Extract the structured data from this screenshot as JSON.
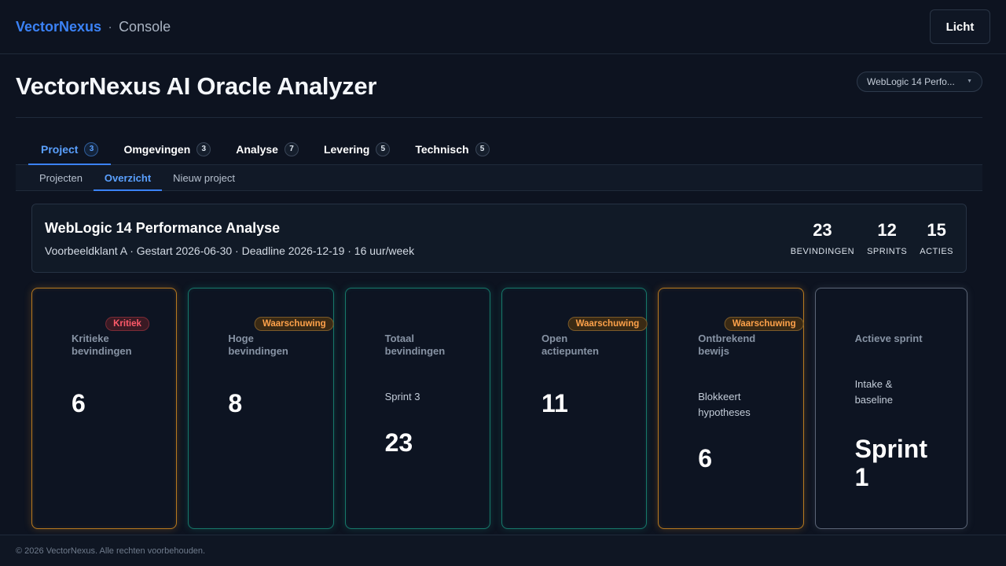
{
  "header": {
    "brand": "VectorNexus",
    "separator": "·",
    "section": "Console",
    "theme_button": "Licht"
  },
  "page": {
    "title": "VectorNexus AI Oracle Analyzer",
    "project_select": "WebLogic 14 Perfo..."
  },
  "tabs": [
    {
      "label": "Project",
      "count": "3",
      "active": true
    },
    {
      "label": "Omgevingen",
      "count": "3"
    },
    {
      "label": "Analyse",
      "count": "7"
    },
    {
      "label": "Levering",
      "count": "5"
    },
    {
      "label": "Technisch",
      "count": "5"
    }
  ],
  "subtabs": [
    {
      "label": "Projecten"
    },
    {
      "label": "Overzicht",
      "active": true
    },
    {
      "label": "Nieuw project"
    }
  ],
  "summary": {
    "title": "WebLogic 14 Performance Analyse",
    "meta": "Voorbeeldklant A · Gestart 2026-06-30 · Deadline 2026-12-19 · 16 uur/week",
    "stats": [
      {
        "value": "23",
        "label": "BEVINDINGEN"
      },
      {
        "value": "12",
        "label": "SPRINTS"
      },
      {
        "value": "15",
        "label": "ACTIES"
      }
    ]
  },
  "cards": [
    {
      "label": "Kritieke bevindingen",
      "badge": "Kritiek",
      "value": "6"
    },
    {
      "label": "Hoge bevindingen",
      "badge": "Waarschuwing",
      "value": "8"
    },
    {
      "label": "Totaal bevindingen",
      "sub": "Sprint 3",
      "value": "23"
    },
    {
      "label": "Open actiepunten",
      "badge": "Waarschuwing",
      "value": "11"
    },
    {
      "label": "Ontbrekend bewijs",
      "badge": "Waarschuwing",
      "sub": "Blokkeert hypotheses",
      "value": "6"
    },
    {
      "label": "Actieve sprint",
      "sub": "Intake & baseline",
      "value": "Sprint 1"
    }
  ],
  "footer": "© 2026 VectorNexus. Alle rechten voorbehouden.",
  "colors": {
    "accent": "#3b82f6",
    "critical": "#ff5a6a",
    "warning": "#ffa24a",
    "amber_border": "#b7791f",
    "green_border": "#16786a"
  }
}
